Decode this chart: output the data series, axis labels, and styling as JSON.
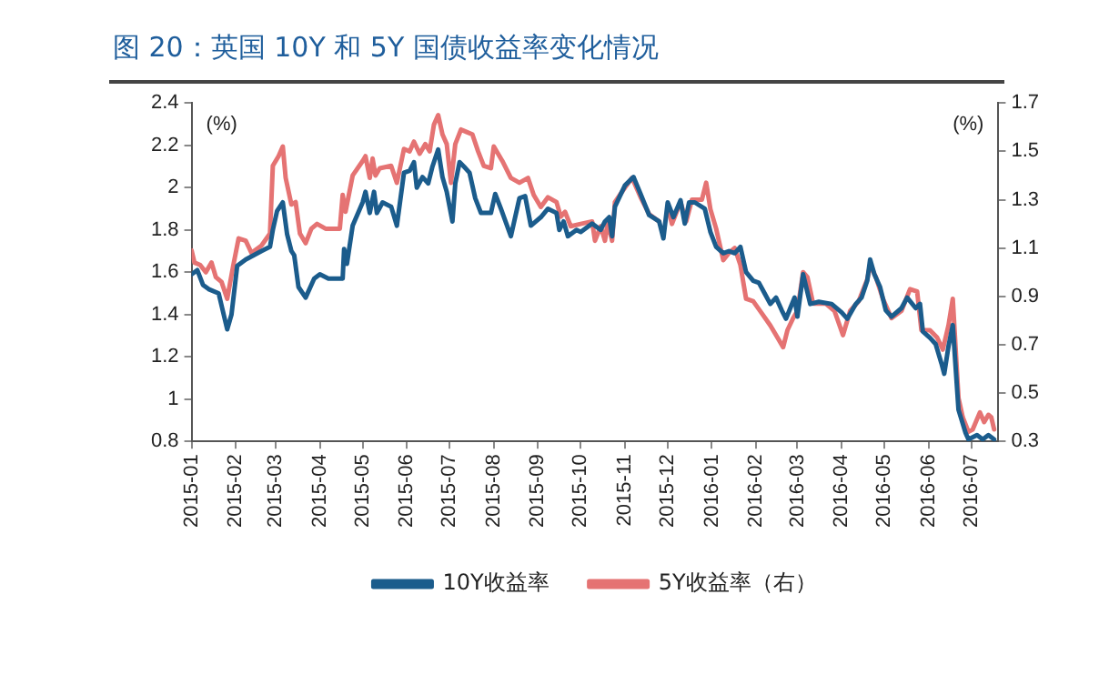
{
  "chart_data": {
    "type": "line",
    "title": "图 20：英国 10Y 和 5Y 国债收益率变化情况",
    "ylabel": "(%)",
    "y2label": "(%)",
    "xlim": [
      "2015-01-01",
      "2016-07-20"
    ],
    "xticks": [
      "2015-01",
      "2015-02",
      "2015-03",
      "2015-04",
      "2015-05",
      "2015-06",
      "2015-07",
      "2015-08",
      "2015-09",
      "2015-10",
      "2015-11",
      "2015-12",
      "2016-01",
      "2016-02",
      "2016-03",
      "2016-04",
      "2016-05",
      "2016-06",
      "2016-07"
    ],
    "ylim": [
      0.8,
      2.4
    ],
    "yticks": [
      0.8,
      1,
      1.2,
      1.4,
      1.6,
      1.8,
      2,
      2.2,
      2.4
    ],
    "y2lim": [
      0.3,
      1.7
    ],
    "y2ticks": [
      0.3,
      0.5,
      0.7,
      0.9,
      1.1,
      1.3,
      1.5,
      1.7
    ],
    "grid": false,
    "legend": "bottom",
    "marker": "none",
    "line_style": "solid",
    "series": [
      {
        "name": "10Y收益率",
        "color": "#1b5c8c",
        "x": [
          "2015-01-01",
          "2015-01-05",
          "2015-01-09",
          "2015-01-13",
          "2015-01-20",
          "2015-01-26",
          "2015-01-29",
          "2015-02-02",
          "2015-02-08",
          "2015-02-19",
          "2015-02-25",
          "2015-02-27",
          "2015-03-02",
          "2015-03-06",
          "2015-03-09",
          "2015-03-12",
          "2015-03-14",
          "2015-03-17",
          "2015-03-22",
          "2015-03-28",
          "2015-04-01",
          "2015-04-07",
          "2015-04-17",
          "2015-04-18",
          "2015-04-20",
          "2015-04-24",
          "2015-05-01",
          "2015-05-03",
          "2015-05-06",
          "2015-05-09",
          "2015-05-11",
          "2015-05-15",
          "2015-05-21",
          "2015-05-25",
          "2015-05-30",
          "2015-06-03",
          "2015-06-06",
          "2015-06-08",
          "2015-06-12",
          "2015-06-16",
          "2015-06-19",
          "2015-06-23",
          "2015-06-26",
          "2015-06-29",
          "2015-07-03",
          "2015-07-05",
          "2015-07-08",
          "2015-07-11",
          "2015-07-15",
          "2015-07-19",
          "2015-07-23",
          "2015-07-30",
          "2015-08-02",
          "2015-08-06",
          "2015-08-13",
          "2015-08-19",
          "2015-08-23",
          "2015-08-27",
          "2015-09-03",
          "2015-09-08",
          "2015-09-14",
          "2015-09-16",
          "2015-09-19",
          "2015-09-22",
          "2015-09-28",
          "2015-10-01",
          "2015-10-09",
          "2015-10-15",
          "2015-10-18",
          "2015-10-21",
          "2015-10-23",
          "2015-10-25",
          "2015-11-01",
          "2015-11-07",
          "2015-11-12",
          "2015-11-18",
          "2015-11-25",
          "2015-11-28",
          "2015-12-01",
          "2015-12-05",
          "2015-12-10",
          "2015-12-13",
          "2015-12-16",
          "2015-12-20",
          "2015-12-27",
          "2015-12-31",
          "2016-01-04",
          "2016-01-09",
          "2016-01-13",
          "2016-01-17",
          "2016-01-21",
          "2016-01-25",
          "2016-01-30",
          "2016-02-03",
          "2016-02-07",
          "2016-02-11",
          "2016-02-15",
          "2016-02-19",
          "2016-02-22",
          "2016-02-25",
          "2016-02-28",
          "2016-03-01",
          "2016-03-05",
          "2016-03-10",
          "2016-03-16",
          "2016-03-25",
          "2016-04-01",
          "2016-04-05",
          "2016-04-11",
          "2016-04-15",
          "2016-04-19",
          "2016-04-21",
          "2016-04-24",
          "2016-04-28",
          "2016-05-02",
          "2016-05-06",
          "2016-05-13",
          "2016-05-17",
          "2016-05-23",
          "2016-05-26",
          "2016-05-28",
          "2016-06-02",
          "2016-06-06",
          "2016-06-10",
          "2016-06-12",
          "2016-06-15",
          "2016-06-18",
          "2016-06-22",
          "2016-06-27",
          "2016-06-29",
          "2016-07-05",
          "2016-07-09",
          "2016-07-13",
          "2016-07-17"
        ],
        "values": [
          1.59,
          1.61,
          1.54,
          1.52,
          1.5,
          1.33,
          1.4,
          1.63,
          1.66,
          1.7,
          1.72,
          1.8,
          1.89,
          1.93,
          1.78,
          1.7,
          1.68,
          1.53,
          1.48,
          1.57,
          1.59,
          1.57,
          1.57,
          1.71,
          1.64,
          1.82,
          1.93,
          1.98,
          1.88,
          1.98,
          1.88,
          1.93,
          1.91,
          1.82,
          2.07,
          2.08,
          2.12,
          2.0,
          2.05,
          2.02,
          2.1,
          2.18,
          2.05,
          1.98,
          1.84,
          2.02,
          2.12,
          2.1,
          2.07,
          1.95,
          1.88,
          1.88,
          1.97,
          1.9,
          1.77,
          1.95,
          1.96,
          1.82,
          1.86,
          1.9,
          1.88,
          1.8,
          1.84,
          1.77,
          1.8,
          1.79,
          1.83,
          1.8,
          1.84,
          1.86,
          1.77,
          1.91,
          2.01,
          2.05,
          1.97,
          1.87,
          1.84,
          1.76,
          1.93,
          1.86,
          1.94,
          1.83,
          1.93,
          1.93,
          1.9,
          1.79,
          1.72,
          1.69,
          1.7,
          1.69,
          1.72,
          1.6,
          1.56,
          1.55,
          1.5,
          1.45,
          1.48,
          1.42,
          1.38,
          1.43,
          1.48,
          1.39,
          1.59,
          1.45,
          1.46,
          1.45,
          1.41,
          1.38,
          1.45,
          1.48,
          1.56,
          1.66,
          1.59,
          1.53,
          1.42,
          1.39,
          1.43,
          1.48,
          1.43,
          1.45,
          1.32,
          1.29,
          1.26,
          1.17,
          1.12,
          1.25,
          1.35,
          0.95,
          0.84,
          0.81,
          0.83,
          0.81,
          0.83,
          0.81
        ]
      },
      {
        "name": "5Y收益率（右）",
        "color": "#e57373",
        "axis": "y2",
        "x": [
          "2015-01-01",
          "2015-01-03",
          "2015-01-07",
          "2015-01-11",
          "2015-01-15",
          "2015-01-18",
          "2015-01-22",
          "2015-01-26",
          "2015-01-30",
          "2015-02-03",
          "2015-02-08",
          "2015-02-12",
          "2015-02-19",
          "2015-02-25",
          "2015-02-27",
          "2015-03-03",
          "2015-03-06",
          "2015-03-08",
          "2015-03-12",
          "2015-03-15",
          "2015-03-18",
          "2015-03-22",
          "2015-03-26",
          "2015-03-30",
          "2015-04-05",
          "2015-04-15",
          "2015-04-17",
          "2015-04-19",
          "2015-04-24",
          "2015-05-01",
          "2015-05-03",
          "2015-05-06",
          "2015-05-08",
          "2015-05-10",
          "2015-05-13",
          "2015-05-21",
          "2015-05-25",
          "2015-05-30",
          "2015-06-03",
          "2015-06-06",
          "2015-06-10",
          "2015-06-14",
          "2015-06-17",
          "2015-06-20",
          "2015-06-23",
          "2015-06-26",
          "2015-06-29",
          "2015-07-02",
          "2015-07-05",
          "2015-07-09",
          "2015-07-13",
          "2015-07-17",
          "2015-07-21",
          "2015-07-25",
          "2015-07-30",
          "2015-08-01",
          "2015-08-07",
          "2015-08-13",
          "2015-08-19",
          "2015-08-25",
          "2015-08-29",
          "2015-09-03",
          "2015-09-08",
          "2015-09-14",
          "2015-09-17",
          "2015-09-20",
          "2015-09-24",
          "2015-10-01",
          "2015-10-09",
          "2015-10-11",
          "2015-10-15",
          "2015-10-18",
          "2015-10-20",
          "2015-10-23",
          "2015-10-25",
          "2015-11-01",
          "2015-11-06",
          "2015-11-12",
          "2015-11-18",
          "2015-11-25",
          "2015-11-28",
          "2015-12-01",
          "2015-12-04",
          "2015-12-10",
          "2015-12-14",
          "2015-12-18",
          "2015-12-25",
          "2015-12-28",
          "2015-12-31",
          "2016-01-04",
          "2016-01-09",
          "2016-01-13",
          "2016-01-17",
          "2016-01-21",
          "2016-01-25",
          "2016-01-30",
          "2016-02-05",
          "2016-02-11",
          "2016-02-16",
          "2016-02-20",
          "2016-02-23",
          "2016-02-27",
          "2016-03-01",
          "2016-03-05",
          "2016-03-08",
          "2016-03-12",
          "2016-03-21",
          "2016-03-27",
          "2016-04-02",
          "2016-04-07",
          "2016-04-13",
          "2016-04-19",
          "2016-04-21",
          "2016-04-25",
          "2016-04-30",
          "2016-05-06",
          "2016-05-13",
          "2016-05-19",
          "2016-05-24",
          "2016-05-27",
          "2016-06-02",
          "2016-06-07",
          "2016-06-11",
          "2016-06-15",
          "2016-06-18",
          "2016-06-22",
          "2016-06-25",
          "2016-06-29",
          "2016-07-02",
          "2016-07-07",
          "2016-07-10",
          "2016-07-13",
          "2016-07-15",
          "2016-07-17"
        ],
        "values": [
          1.09,
          1.04,
          1.03,
          1.0,
          1.04,
          0.98,
          0.96,
          0.89,
          1.02,
          1.14,
          1.13,
          1.08,
          1.11,
          1.16,
          1.44,
          1.48,
          1.52,
          1.39,
          1.28,
          1.29,
          1.16,
          1.12,
          1.18,
          1.2,
          1.18,
          1.18,
          1.32,
          1.25,
          1.4,
          1.46,
          1.48,
          1.39,
          1.47,
          1.4,
          1.43,
          1.44,
          1.37,
          1.51,
          1.5,
          1.54,
          1.49,
          1.53,
          1.5,
          1.61,
          1.65,
          1.57,
          1.53,
          1.37,
          1.53,
          1.59,
          1.58,
          1.57,
          1.5,
          1.44,
          1.43,
          1.52,
          1.46,
          1.39,
          1.37,
          1.39,
          1.32,
          1.27,
          1.31,
          1.29,
          1.23,
          1.25,
          1.19,
          1.2,
          1.21,
          1.13,
          1.19,
          1.13,
          1.21,
          1.13,
          1.29,
          1.35,
          1.39,
          1.31,
          1.24,
          1.21,
          null,
          1.27,
          1.2,
          1.29,
          1.21,
          1.3,
          1.3,
          1.37,
          1.26,
          1.18,
          1.05,
          1.08,
          1.1,
          1.03,
          0.89,
          0.88,
          0.83,
          0.78,
          0.73,
          0.69,
          0.76,
          0.81,
          0.84,
          1.0,
          0.98,
          0.87,
          0.87,
          0.84,
          0.74,
          0.84,
          0.88,
          0.97,
          1.03,
          0.98,
          0.89,
          0.81,
          0.84,
          0.93,
          0.92,
          0.76,
          0.76,
          0.73,
          0.68,
          0.78,
          0.89,
          0.48,
          0.4,
          0.34,
          0.35,
          0.42,
          0.38,
          0.41,
          0.4,
          0.35
        ]
      }
    ]
  }
}
